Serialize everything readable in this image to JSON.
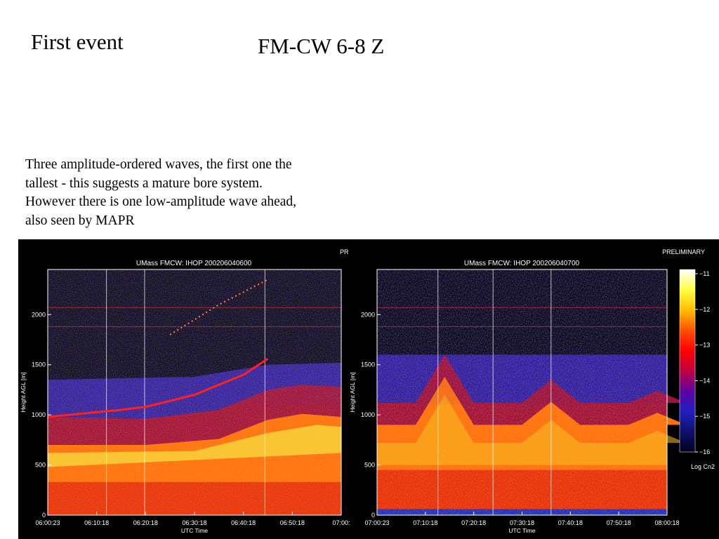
{
  "slide": {
    "title_left": "First event",
    "title_center": "FM-CW 6-8 Z",
    "caption_lines": [
      "Three amplitude-ordered waves, the first one the",
      "tallest - this suggests a mature bore system.",
      "However there is one low-amplitude wave ahead,",
      "also seen by MAPR"
    ]
  },
  "chart_data": [
    {
      "type": "heatmap",
      "title": "UMass FMCW: IHOP 200206040600",
      "corner_label": "PR",
      "xlabel": "UTC Time",
      "ylabel": "Height AGL [m]",
      "x_ticks": [
        "06:00:23",
        "06:10:18",
        "06:20:18",
        "06:30:18",
        "06:40:18",
        "06:50:18",
        "07:00:"
      ],
      "y_ticks": [
        0,
        500,
        1000,
        1500,
        2000
      ],
      "ylim": [
        0,
        2450
      ],
      "x_minutes": [
        0,
        60
      ],
      "bands": [
        {
          "name": "near-surface layer",
          "x": [
            0,
            60
          ],
          "top": [
            300,
            300
          ]
        },
        {
          "name": "mixed layer top",
          "x": [
            0,
            20,
            35,
            45,
            52,
            60
          ],
          "top": [
            700,
            700,
            760,
            950,
            1010,
            980
          ]
        },
        {
          "name": "strong return line",
          "x": [
            0,
            15,
            20,
            30,
            40,
            45
          ],
          "height": [
            980,
            1050,
            1080,
            1200,
            1400,
            1560
          ]
        },
        {
          "name": "scatter plume",
          "x": [
            25,
            35,
            45
          ],
          "height": [
            1800,
            2100,
            2350
          ]
        }
      ]
    },
    {
      "type": "heatmap",
      "title": "UMass FMCW: IHOP 200206040700",
      "corner_label": "PRELIMINARY",
      "xlabel": "UTC Time",
      "ylabel": "Height AGL [m]",
      "x_ticks": [
        "07:00:23",
        "07:10:18",
        "07:20:18",
        "07:30:18",
        "07:40:18",
        "07:50:18",
        "08:00:18"
      ],
      "y_ticks": [
        0,
        500,
        1000,
        1500,
        2000
      ],
      "ylim": [
        0,
        2450
      ],
      "x_minutes": [
        0,
        60
      ],
      "waves": [
        {
          "name": "wave 1",
          "crest_minute": 14,
          "crest_height": 1380
        },
        {
          "name": "wave 2",
          "crest_minute": 36,
          "crest_height": 1130
        },
        {
          "name": "wave 3",
          "crest_minute": 58,
          "crest_height": 1020
        }
      ]
    }
  ],
  "colorbar": {
    "label": "Log Cn2",
    "ticks": [
      -11,
      -12,
      -13,
      -14,
      -15,
      -16
    ],
    "colors": [
      "#ffffff",
      "#ffff40",
      "#ffbf00",
      "#ff5000",
      "#ff0000",
      "#c00040",
      "#6000a0",
      "#2020c0",
      "#10106a",
      "#000020"
    ]
  },
  "colors": {
    "background": "#000000",
    "text": "#ffffff"
  }
}
